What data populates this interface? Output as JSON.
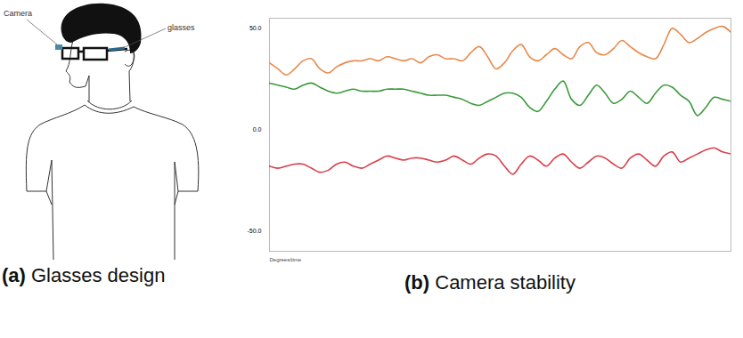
{
  "illustration": {
    "labels": [
      "Camera",
      "glasses"
    ],
    "caption": {
      "label": "(a)",
      "text": "Glasses design"
    }
  },
  "chart_data": {
    "type": "line",
    "caption": {
      "label": "(b)",
      "text": "Camera stability"
    },
    "xlabel": "Degrees/time",
    "x": [
      0,
      1,
      2,
      3,
      4,
      5,
      6,
      7,
      8,
      9,
      10,
      11,
      12,
      13,
      14,
      15,
      16,
      17,
      18,
      19,
      20,
      21,
      22,
      23,
      24,
      25,
      26,
      27,
      28,
      29,
      30,
      31,
      32,
      33,
      34,
      35,
      36,
      37,
      38,
      39,
      40,
      41,
      42,
      43,
      44,
      45,
      46,
      47,
      48,
      49,
      50,
      51,
      52,
      53,
      54,
      55
    ],
    "xlim": [
      0,
      55
    ],
    "xticks": [],
    "ylim": [
      -60,
      55
    ],
    "yticks": [
      {
        "value": -50,
        "label": "-50.0"
      },
      {
        "value": 0,
        "label": "0.0"
      },
      {
        "value": 50,
        "label": "50.0"
      }
    ],
    "tick_labels": "y",
    "grid": false,
    "series": [
      {
        "color": "#e8894a",
        "values": [
          33,
          30,
          27,
          30,
          34,
          35,
          30,
          28,
          31,
          33,
          34,
          34,
          35,
          34,
          36,
          35,
          34,
          35,
          33,
          36,
          37,
          35,
          35,
          34,
          38,
          41,
          36,
          30,
          33,
          39,
          42,
          36,
          34,
          37,
          40,
          37,
          35,
          41,
          43,
          38,
          37,
          40,
          44,
          41,
          38,
          36,
          35,
          42,
          50,
          47,
          43,
          45,
          48,
          50,
          51,
          48
        ]
      },
      {
        "color": "#3a9a3a",
        "values": [
          23,
          22,
          21,
          20,
          22,
          23,
          21,
          19,
          18,
          19,
          20,
          19,
          19,
          19,
          20,
          20,
          20,
          19,
          18,
          17,
          17,
          17,
          16,
          15,
          13,
          12,
          14,
          16,
          18,
          18,
          16,
          11,
          9,
          14,
          20,
          24,
          15,
          12,
          17,
          22,
          18,
          13,
          15,
          19,
          16,
          13,
          18,
          22,
          21,
          17,
          14,
          7,
          11,
          16,
          15,
          14
        ]
      },
      {
        "color": "#d9404a",
        "values": [
          -18,
          -19,
          -18,
          -17,
          -17,
          -19,
          -21,
          -20,
          -17,
          -16,
          -18,
          -19,
          -17,
          -15,
          -13,
          -14,
          -15,
          -14,
          -14,
          -15,
          -16,
          -15,
          -13,
          -15,
          -17,
          -14,
          -12,
          -13,
          -18,
          -22,
          -17,
          -13,
          -15,
          -18,
          -14,
          -12,
          -16,
          -19,
          -16,
          -13,
          -14,
          -17,
          -19,
          -14,
          -12,
          -15,
          -18,
          -13,
          -11,
          -16,
          -14,
          -12,
          -10,
          -9,
          -11,
          -12
        ]
      }
    ]
  }
}
